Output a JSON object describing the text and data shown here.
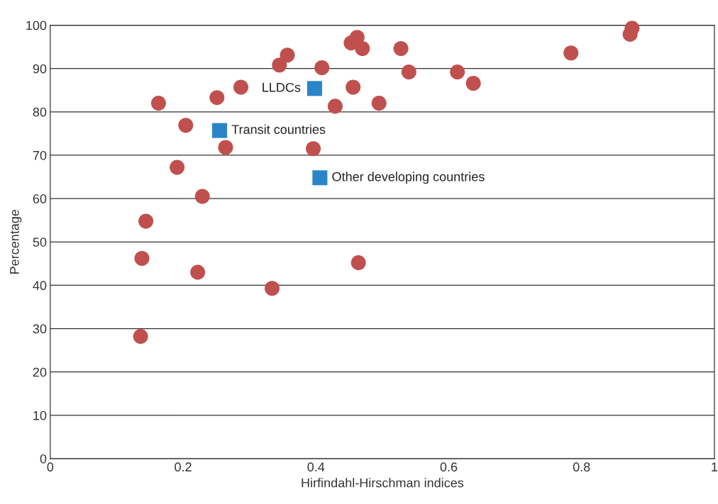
{
  "chart_data": {
    "type": "scatter",
    "xlabel": "Hirfindahl-Hirschman indices",
    "ylabel": "Percentage",
    "xlim": [
      0,
      1
    ],
    "xticks": [
      0,
      0.2,
      0.4,
      0.6,
      0.8,
      1
    ],
    "ylim": [
      0,
      100
    ],
    "yticks": [
      0,
      10,
      20,
      30,
      40,
      50,
      60,
      70,
      80,
      90,
      100
    ],
    "grid": "y",
    "series": [
      {
        "color": "#c0504d",
        "marker": "circle",
        "x": [
          0.136,
          0.138,
          0.144,
          0.163,
          0.191,
          0.204,
          0.222,
          0.229,
          0.251,
          0.264,
          0.287,
          0.334,
          0.345,
          0.357,
          0.396,
          0.409,
          0.429,
          0.453,
          0.456,
          0.462,
          0.464,
          0.47,
          0.495,
          0.528,
          0.54,
          0.613,
          0.637,
          0.784,
          0.873,
          0.876
        ],
        "values": [
          28.2,
          46.2,
          54.8,
          82.0,
          67.2,
          76.9,
          43.0,
          60.5,
          83.3,
          71.8,
          85.7,
          39.3,
          90.8,
          93.1,
          71.5,
          90.2,
          81.3,
          95.9,
          85.7,
          97.2,
          45.2,
          94.6,
          82.0,
          94.6,
          89.2,
          89.2,
          86.6,
          93.6,
          97.9,
          99.3
        ]
      },
      {
        "color": "#2a85c8",
        "marker": "square",
        "x": [
          0.398,
          0.255,
          0.406
        ],
        "values": [
          85.4,
          75.7,
          64.8
        ]
      }
    ],
    "annotations": [
      {
        "text": "LLDCs",
        "x": 0.398,
        "y": 85.4
      },
      {
        "text": "Transit countries",
        "x": 0.255,
        "y": 75.7
      },
      {
        "text": "Other developing countries",
        "x": 0.406,
        "y": 64.8
      }
    ]
  }
}
